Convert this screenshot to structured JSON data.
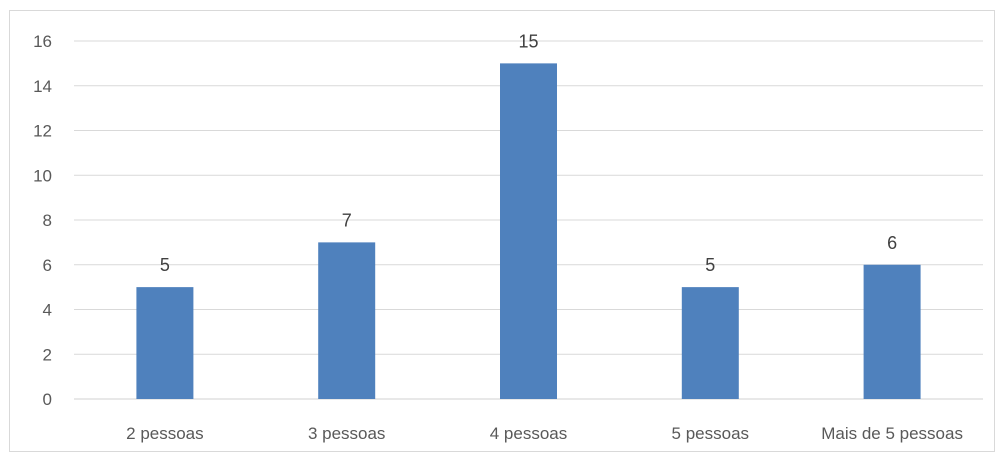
{
  "chart_data": {
    "type": "bar",
    "title": "",
    "xlabel": "",
    "ylabel": "",
    "categories": [
      "2 pessoas",
      "3 pessoas",
      "4 pessoas",
      "5 pessoas",
      "Mais de 5 pessoas"
    ],
    "values": [
      5,
      7,
      15,
      5,
      6
    ],
    "ylim": [
      0,
      16
    ],
    "yticks": [
      0,
      2,
      4,
      6,
      8,
      10,
      12,
      14,
      16
    ],
    "grid": true,
    "legend": "none",
    "bar_color": "#4f81bd",
    "data_labels": true
  }
}
